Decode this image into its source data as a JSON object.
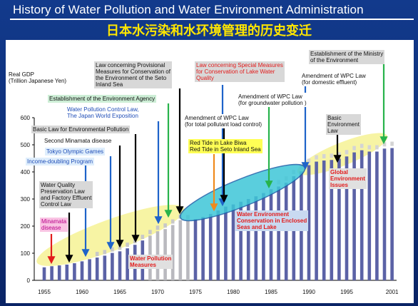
{
  "header": {
    "title": "History of Water Pollution and Water Environment Administration",
    "subtitle": "日本水污染和水环境管理的历史变迁"
  },
  "colors": {
    "background": "#0d2d7a",
    "title_text": "#ffffff",
    "subtitle_text": "#ffe600",
    "bar": "#5b62a6",
    "ellipse_yellow": "#f6f39a",
    "ellipse_cyan": "#3ec6d8",
    "arrow_green": "#27b34b",
    "arrow_blue": "#1e63c9",
    "arrow_red": "#e21b1b",
    "arrow_orange": "#f08a1c",
    "arrow_black": "#000000"
  },
  "chart_data": {
    "type": "bar",
    "ylabel": "Real GDP",
    "ylabel_unit": "(Trillion Japanese Yen)",
    "ylim": [
      0,
      600
    ],
    "yticks": [
      0,
      100,
      200,
      300,
      400,
      500,
      600
    ],
    "xticks": [
      1955,
      1960,
      1965,
      1970,
      1975,
      1980,
      1985,
      1990,
      1995,
      2001
    ],
    "grid": false,
    "x": [
      1955,
      1956,
      1957,
      1958,
      1959,
      1960,
      1961,
      1962,
      1963,
      1964,
      1965,
      1966,
      1967,
      1968,
      1969,
      1970,
      1971,
      1972,
      1973,
      1974,
      1975,
      1976,
      1977,
      1978,
      1979,
      1980,
      1981,
      1982,
      1983,
      1984,
      1985,
      1986,
      1987,
      1988,
      1989,
      1990,
      1991,
      1992,
      1993,
      1994,
      1995,
      1996,
      1997,
      1998,
      1999,
      2000,
      2001
    ],
    "values": [
      48,
      52,
      55,
      58,
      63,
      70,
      78,
      84,
      91,
      101,
      107,
      118,
      131,
      147,
      165,
      181,
      189,
      204,
      222,
      220,
      226,
      234,
      245,
      258,
      272,
      280,
      290,
      300,
      310,
      322,
      336,
      346,
      360,
      384,
      402,
      425,
      438,
      442,
      444,
      449,
      457,
      472,
      480,
      475,
      475,
      486,
      488
    ]
  },
  "annotations": [
    {
      "text": "Establishment of the Ministry of the Environment",
      "lines": [
        "Establishment of the Ministry",
        "of the Environment"
      ]
    },
    {
      "text": "Amendment of WPC Law (for domestic effluent)",
      "lines": [
        "Amendment of WPC Law",
        "(for domestic effluent)"
      ]
    },
    {
      "text": "Law concerning Special Measures for Conservation of Lake Water Quality",
      "lines": [
        "Law concerning Special Measures",
        "for Conservation of Lake Water",
        "Quality"
      ]
    },
    {
      "text": "Law concerning Provisional Measures for Conservation of the Environment of the Seto Inland Sea",
      "lines": [
        "Law concerning Provisional",
        "Measures for Conservation of",
        "the Environment of the Seto",
        "Inland Sea"
      ]
    },
    {
      "text": "Amendment of WPC Law (for groundwater pollution)",
      "lines": [
        "Amendment of WPC Law",
        "(for groundwater pollution )"
      ]
    },
    {
      "text": "Establishment of the Environment Agency",
      "lines": [
        "Establishment of the Environment Agency"
      ]
    },
    {
      "text": "Water Pollution Control Law,",
      "lines": [
        "Water  Pollution Control Law,"
      ]
    },
    {
      "text": "The Japan World Exposition",
      "lines": [
        "The Japan World Exposition"
      ]
    },
    {
      "text": "Amendment of WPC Law (for total pollutant load control)",
      "lines": [
        "Amendment of WPC Law",
        "(for total pollutant load control)"
      ]
    },
    {
      "text": "Basic Environment Law",
      "lines": [
        "Basic",
        "Environment",
        "Law"
      ]
    },
    {
      "text": "Basic Law for Environmental Pollution",
      "lines": [
        "Basic Law for Environmental Pollution"
      ]
    },
    {
      "text": "Second Minamata disease",
      "lines": [
        "Second Minamata disease"
      ]
    },
    {
      "text": "Tokyo Olympic Games",
      "lines": [
        "Tokyo Olympic Games"
      ]
    },
    {
      "text": "Red Tide in Lake Biwa",
      "lines": [
        "Red Tide in Lake Biwa"
      ]
    },
    {
      "text": "Red Tide in Seto Inland Sea",
      "lines": [
        "Red Tide in Seto Inland Sea"
      ]
    },
    {
      "text": "Income-doubling Program",
      "lines": [
        "Income-doubling Program"
      ]
    },
    {
      "text": "Global Environment Issues",
      "lines": [
        "Global",
        "Environment",
        "Issues"
      ]
    },
    {
      "text": "Water Quality Preservation Law and Factory Effluent Control Law",
      "lines": [
        "Water Quality",
        "Preservation Law",
        "and Factory Effluent",
        "Control Law"
      ]
    },
    {
      "text": "Water Environment Conservation in Enclosed Seas and Lake",
      "lines": [
        "Water Environment",
        "Conservation in Enclosed",
        "Seas and Lake"
      ]
    },
    {
      "text": "Minamata disease",
      "lines": [
        "Minamata",
        "disease"
      ]
    },
    {
      "text": "Water Pollution Measures",
      "lines": [
        "Water Pollution",
        "Measures"
      ]
    }
  ]
}
